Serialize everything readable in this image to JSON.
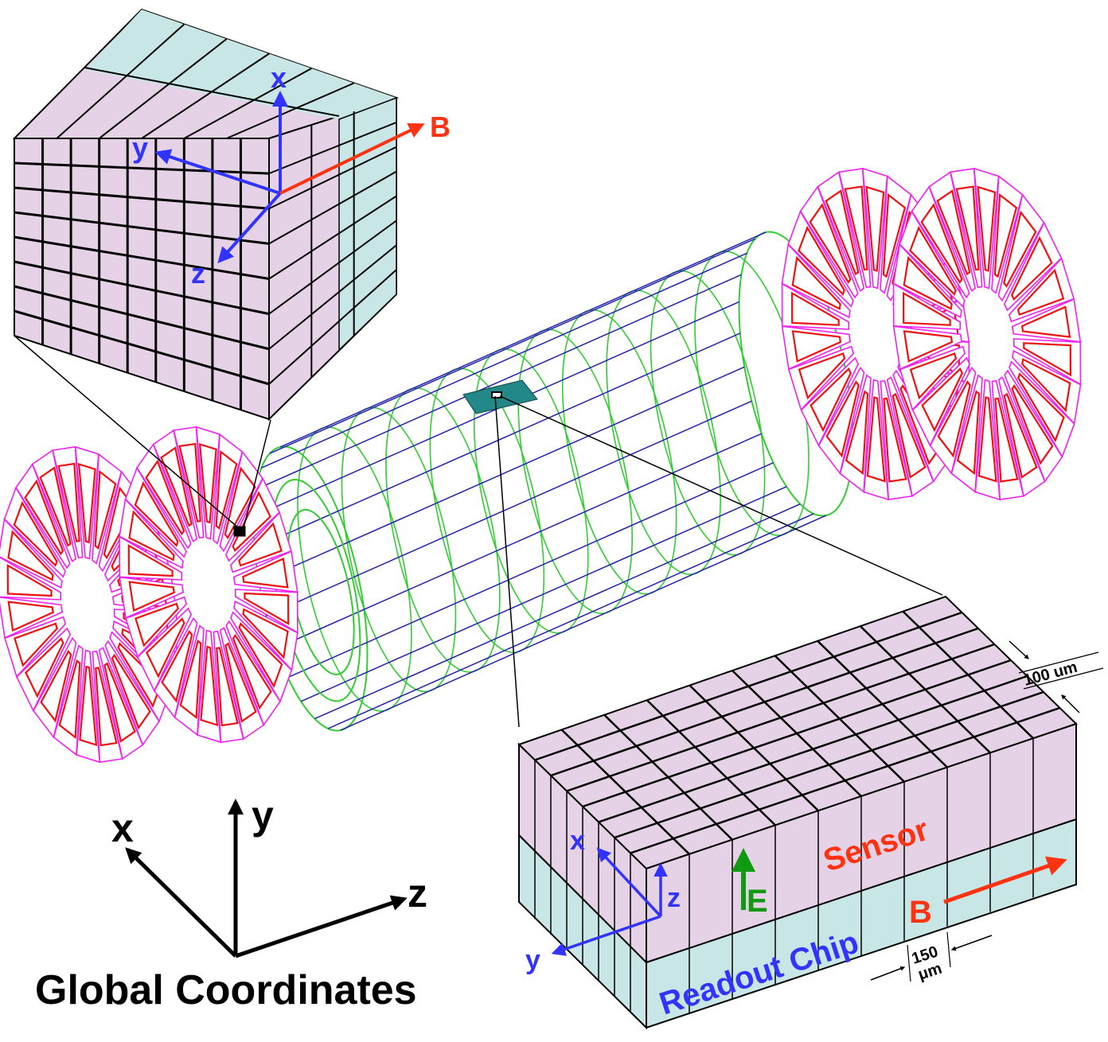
{
  "colors": {
    "pixel_face": "#e6d2e6",
    "chip_face": "#c8e6e6",
    "axis_blue": "#3333ff",
    "axis_red": "#ff3311",
    "axis_green": "#119911",
    "barrel_green": "#33cc33",
    "barrel_blue": "#2222aa",
    "disk_magenta": "#ee22ee",
    "disk_red": "#ee1111",
    "highlight_teal": "#228888"
  },
  "top_inset": {
    "x_label": "x",
    "y_label": "y",
    "z_label": "z",
    "b_label": "B"
  },
  "bottom_inset": {
    "x_label": "x",
    "y_label": "y",
    "z_label": "z",
    "e_label": "E",
    "b_label": "B",
    "sensor_label": "Sensor",
    "chip_label": "Readout Chip",
    "dim_100": "100 um",
    "dim_150": "150",
    "dim_150_unit": "μm"
  },
  "global_axes": {
    "x_label": "x",
    "y_label": "y",
    "z_label": "z",
    "title": "Global Coordinates"
  }
}
